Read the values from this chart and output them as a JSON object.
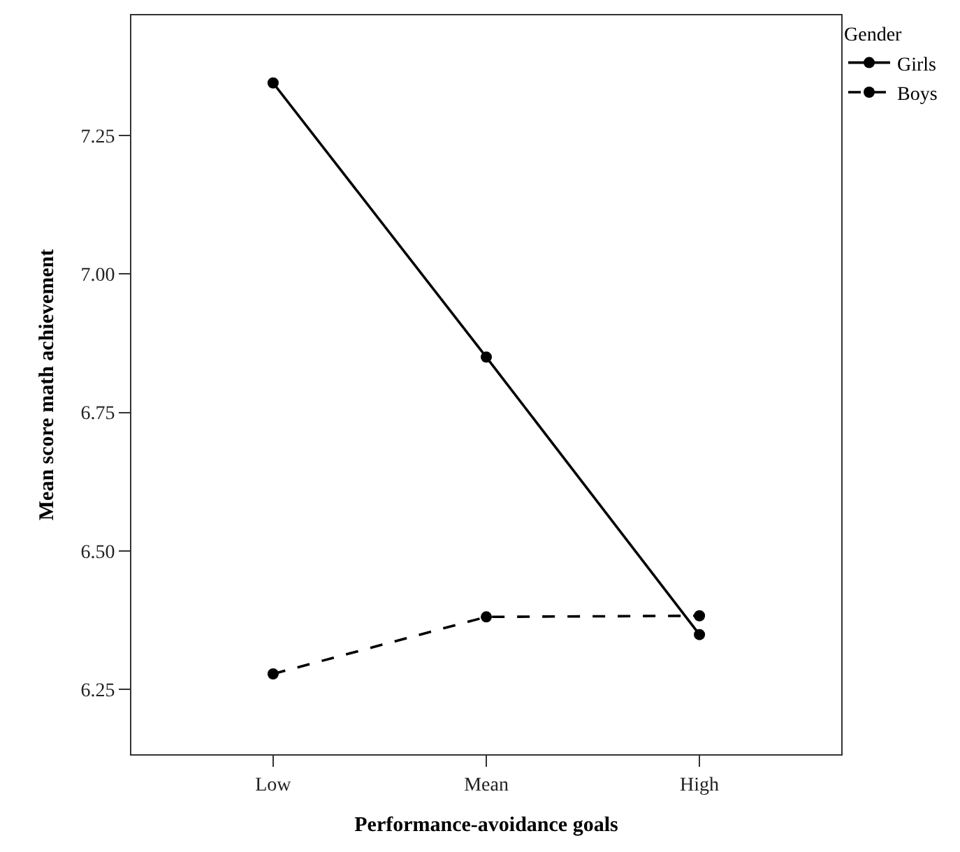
{
  "chart_data": {
    "type": "line",
    "xlabel": "Performance-avoidance goals",
    "ylabel": "Mean score math achievement",
    "legend_title": "Gender",
    "categories": [
      "Low",
      "Mean",
      "High"
    ],
    "series": [
      {
        "name": "Girls",
        "color": "#000000",
        "line_style": "solid",
        "values": [
          7.345,
          6.85,
          6.349
        ]
      },
      {
        "name": "Boys",
        "color": "#000000",
        "line_style": "dashed",
        "values": [
          6.278,
          6.381,
          6.383
        ]
      }
    ],
    "ylim": [
      6.133,
      7.467
    ],
    "yticks": [
      {
        "value": 6.25,
        "label": "6.25"
      },
      {
        "value": 6.5,
        "label": "6.50"
      },
      {
        "value": 6.75,
        "label": "6.75"
      },
      {
        "value": 7.0,
        "label": "7.00"
      },
      {
        "value": 7.25,
        "label": "7.25"
      }
    ],
    "legend": "top right",
    "marker": "circle"
  }
}
